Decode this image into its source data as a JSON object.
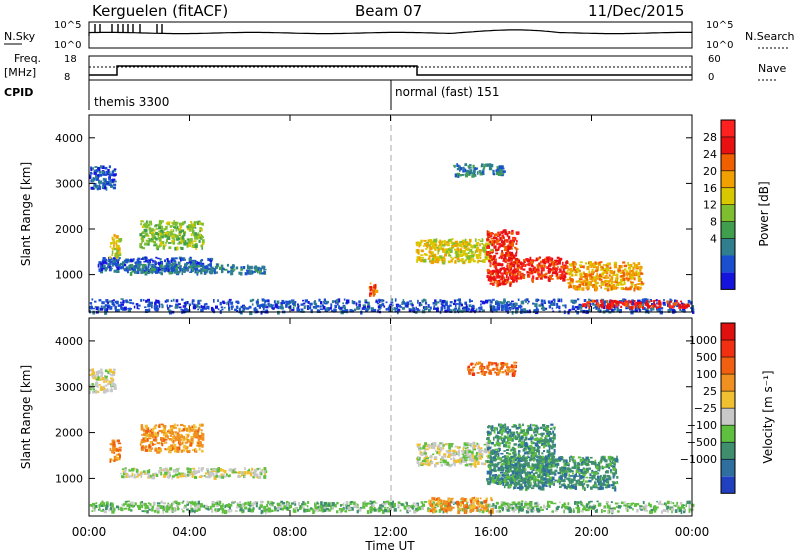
{
  "header": {
    "station": "Kerguelen (fitACF)",
    "beam": "Beam 07",
    "date": "11/Dec/2015"
  },
  "top_panels": {
    "nsky_label": "N.Sky",
    "nsearch_label": "N.Search",
    "nsky_ticks": [
      "10^5",
      "10^0"
    ],
    "nsearch_ticks": [
      "10^5",
      "10^0"
    ],
    "freq_label_1": "Freq.",
    "freq_label_2": "[MHz]",
    "freq_ticks": [
      "18",
      "8"
    ],
    "nave_label": "Nave",
    "nave_ticks": [
      "60",
      "0"
    ],
    "cpid_label": "CPID",
    "cpid_modes": [
      {
        "label": "themis 3300",
        "start_hour": 0
      },
      {
        "label": "normal (fast) 151",
        "start_hour": 12
      }
    ]
  },
  "x_axis": {
    "label": "Time UT",
    "ticks": [
      "00:00",
      "04:00",
      "08:00",
      "12:00",
      "16:00",
      "20:00",
      "00:00"
    ]
  },
  "chart_data": [
    {
      "type": "heatmap",
      "title": "",
      "xlabel": "Time UT",
      "ylabel": "Slant Range [km]",
      "xlim": [
        0,
        24
      ],
      "ylim": [
        180,
        4500
      ],
      "yticks": [
        "4000",
        "3000",
        "2000",
        "1000"
      ],
      "colorbar": {
        "label": "Power [dB]",
        "ticks": [
          "28",
          "24",
          "20",
          "16",
          "12",
          "8",
          "4"
        ],
        "colors": [
          "#1414dc",
          "#1a4fd0",
          "#2f7f8f",
          "#3f9f4f",
          "#7fbf2f",
          "#d9c800",
          "#f0a000",
          "#f06000",
          "#e81010",
          "#ff2020"
        ]
      },
      "regions": [
        {
          "t0": 0.0,
          "t1": 24.0,
          "r0": 200,
          "r1": 480,
          "level": 1
        },
        {
          "t0": 0.3,
          "t1": 5.0,
          "r0": 1100,
          "r1": 1400,
          "level": 1
        },
        {
          "t0": 0.8,
          "t1": 1.2,
          "r0": 1400,
          "r1": 1900,
          "level": 5
        },
        {
          "t0": 2.0,
          "t1": 4.5,
          "r0": 1600,
          "r1": 2200,
          "level": 4
        },
        {
          "t0": 1.5,
          "t1": 7.0,
          "r0": 1050,
          "r1": 1250,
          "level": 2
        },
        {
          "t0": 11.1,
          "t1": 11.4,
          "r0": 550,
          "r1": 850,
          "level": 7
        },
        {
          "t0": 13.0,
          "t1": 16.0,
          "r0": 1300,
          "r1": 1800,
          "level": 5
        },
        {
          "t0": 15.8,
          "t1": 17.0,
          "r0": 800,
          "r1": 2000,
          "level": 8
        },
        {
          "t0": 16.5,
          "t1": 19.0,
          "r0": 900,
          "r1": 1400,
          "level": 8
        },
        {
          "t0": 19.0,
          "t1": 22.0,
          "r0": 700,
          "r1": 1300,
          "level": 6
        },
        {
          "t0": 19.5,
          "t1": 23.8,
          "r0": 300,
          "r1": 450,
          "level": 8
        },
        {
          "t0": 14.5,
          "t1": 16.5,
          "r0": 3200,
          "r1": 3450,
          "level": 2
        },
        {
          "t0": 0.0,
          "t1": 1.0,
          "r0": 2900,
          "r1": 3400,
          "level": 1
        }
      ]
    },
    {
      "type": "heatmap",
      "title": "",
      "xlabel": "Time UT",
      "ylabel": "Slant Range [km]",
      "xlim": [
        0,
        24
      ],
      "ylim": [
        180,
        4500
      ],
      "yticks": [
        "4000",
        "3000",
        "2000",
        "1000"
      ],
      "colorbar": {
        "label": "Velocity [m s⁻¹]",
        "ticks": [
          "1000",
          "500",
          "100",
          "25",
          "−25",
          "−100",
          "−500",
          "−1000"
        ],
        "colors": [
          "#2040c0",
          "#2f6fa0",
          "#3f8f6f",
          "#5fbf3f",
          "#c8c8c8",
          "#f0c030",
          "#f09020",
          "#f06010",
          "#f03010",
          "#e01010"
        ]
      },
      "regions": [
        {
          "t0": 0.0,
          "t1": 24.0,
          "r0": 300,
          "r1": 520,
          "level": 3
        },
        {
          "t0": 1.2,
          "t1": 7.0,
          "r0": 1050,
          "r1": 1250,
          "level": 4
        },
        {
          "t0": 2.0,
          "t1": 4.5,
          "r0": 1600,
          "r1": 2200,
          "level": 6
        },
        {
          "t0": 0.8,
          "t1": 1.2,
          "r0": 1400,
          "r1": 1900,
          "level": 6
        },
        {
          "t0": 13.0,
          "t1": 16.0,
          "r0": 1300,
          "r1": 1800,
          "level": 4
        },
        {
          "t0": 15.8,
          "t1": 18.5,
          "r0": 900,
          "r1": 2200,
          "level": 2
        },
        {
          "t0": 16.5,
          "t1": 21.0,
          "r0": 800,
          "r1": 1500,
          "level": 2
        },
        {
          "t0": 13.5,
          "t1": 16.0,
          "r0": 300,
          "r1": 600,
          "level": 6
        },
        {
          "t0": 15.0,
          "t1": 17.0,
          "r0": 3300,
          "r1": 3550,
          "level": 7
        },
        {
          "t0": 0.0,
          "t1": 1.0,
          "r0": 2900,
          "r1": 3400,
          "level": 4
        }
      ]
    }
  ]
}
